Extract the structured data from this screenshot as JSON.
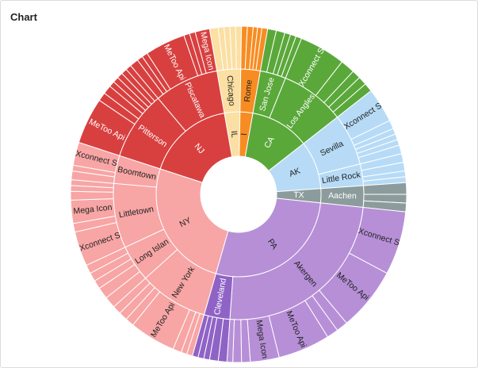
{
  "chart_data": {
    "type": "sunburst",
    "title": "Chart",
    "children": [
      {
        "name": "IL",
        "color": "#fbdfa3",
        "value": 11,
        "children": [
          {
            "name": "Chicago",
            "value": 11,
            "children": [
              {
                "name": null,
                "value": 3
              },
              {
                "name": null,
                "value": 2
              },
              {
                "name": null,
                "value": 2
              },
              {
                "name": null,
                "value": 2
              },
              {
                "name": null,
                "value": 2
              }
            ]
          }
        ]
      },
      {
        "name": "I",
        "color": "#f78d22",
        "value": 9,
        "children": [
          {
            "name": "Rome",
            "value": 9,
            "children": [
              {
                "name": null,
                "value": 2
              },
              {
                "name": null,
                "value": 2
              },
              {
                "name": null,
                "value": 1.5
              },
              {
                "name": null,
                "value": 1.5
              },
              {
                "name": null,
                "value": 2
              }
            ]
          }
        ]
      },
      {
        "name": "CA",
        "color": "#5aa83a",
        "value": 42,
        "children": [
          {
            "name": "San Jose",
            "value": 12,
            "children": [
              {
                "name": null,
                "value": 3
              },
              {
                "name": null,
                "value": 3
              },
              {
                "name": null,
                "value": 2
              },
              {
                "name": null,
                "value": 2
              },
              {
                "name": null,
                "value": 2
              }
            ]
          },
          {
            "name": "Los Angles",
            "value": 30,
            "children": [
              {
                "name": "Xconnect S",
                "value": 16
              },
              {
                "name": null,
                "value": 5
              },
              {
                "name": null,
                "value": 3
              },
              {
                "name": null,
                "value": 3
              },
              {
                "name": null,
                "value": 3
              }
            ]
          }
        ]
      },
      {
        "name": "AK",
        "color": "#b7dbf6",
        "value": 34,
        "children": [
          {
            "name": "Sevilla",
            "value": 24,
            "children": [
              {
                "name": "Xconnect S",
                "value": 12
              },
              {
                "name": null,
                "value": 3
              },
              {
                "name": null,
                "value": 2
              },
              {
                "name": null,
                "value": 2
              },
              {
                "name": null,
                "value": 2
              },
              {
                "name": null,
                "value": 3
              }
            ]
          },
          {
            "name": "Little Rock",
            "value": 10,
            "children": [
              {
                "name": null,
                "value": 3
              },
              {
                "name": null,
                "value": 3
              },
              {
                "name": null,
                "value": 2
              },
              {
                "name": null,
                "value": 2
              }
            ]
          }
        ]
      },
      {
        "name": "TX",
        "color": "#8c9c9c",
        "value": 10,
        "children": [
          {
            "name": "Aachen",
            "value": 10,
            "children": [
              {
                "name": null,
                "value": 4
              },
              {
                "name": null,
                "value": 3
              },
              {
                "name": null,
                "value": 3
              }
            ]
          }
        ]
      },
      {
        "name": "PA",
        "color": "#b78fd7",
        "value": 100,
        "children": [
          {
            "name": "Akergen",
            "value": 88,
            "children": [
              {
                "name": "Xconnect S",
                "value": 22
              },
              {
                "name": "MeToo Api",
                "value": 22
              },
              {
                "name": null,
                "value": 4
              },
              {
                "name": null,
                "value": 4
              },
              {
                "name": "MeToo Api",
                "value": 18
              },
              {
                "name": "Mega Icon",
                "value": 10
              },
              {
                "name": null,
                "value": 3
              },
              {
                "name": null,
                "value": 3
              },
              {
                "name": null,
                "value": 2
              }
            ]
          },
          {
            "name": "Cleveland",
            "color": "#8f63c6",
            "value": 12,
            "children": [
              {
                "name": null,
                "value": 3
              },
              {
                "name": null,
                "value": 3
              },
              {
                "name": null,
                "value": 2
              },
              {
                "name": null,
                "value": 2
              },
              {
                "name": null,
                "value": 2
              }
            ]
          }
        ]
      },
      {
        "name": "NY",
        "color": "#f8a5a5",
        "value": 92,
        "children": [
          {
            "name": "New York",
            "value": 32,
            "children": [
              {
                "name": null,
                "value": 2
              },
              {
                "name": null,
                "value": 2
              },
              {
                "name": null,
                "value": 3
              },
              {
                "name": "MeToo Api",
                "value": 16
              },
              {
                "name": null,
                "value": 3
              },
              {
                "name": null,
                "value": 3
              },
              {
                "name": null,
                "value": 3
              }
            ]
          },
          {
            "name": "Long Islan",
            "value": 17,
            "children": [
              {
                "name": null,
                "value": 4
              },
              {
                "name": null,
                "value": 4
              },
              {
                "name": null,
                "value": 3
              },
              {
                "name": null,
                "value": 3
              },
              {
                "name": null,
                "value": 3
              }
            ]
          },
          {
            "name": "Littletown",
            "value": 30,
            "children": [
              {
                "name": "Xconnect S",
                "value": 12
              },
              {
                "name": null,
                "value": 3
              },
              {
                "name": "Mega Icon",
                "value": 8
              },
              {
                "name": null,
                "value": 3
              },
              {
                "name": null,
                "value": 2
              },
              {
                "name": null,
                "value": 2
              }
            ]
          },
          {
            "name": "Boomtown",
            "value": 13,
            "children": [
              {
                "name": null,
                "value": 3
              },
              {
                "name": null,
                "value": 2
              },
              {
                "name": "Xconnect S",
                "value": 8
              }
            ]
          }
        ]
      },
      {
        "name": "NJ",
        "color": "#d8403f",
        "value": 62,
        "children": [
          {
            "name": "Pitterson",
            "value": 32,
            "children": [
              {
                "name": "MeToo Api",
                "value": 16
              },
              {
                "name": null,
                "value": 3
              },
              {
                "name": null,
                "value": 3
              },
              {
                "name": null,
                "value": 2
              },
              {
                "name": null,
                "value": 2
              },
              {
                "name": null,
                "value": 2
              },
              {
                "name": null,
                "value": 2
              },
              {
                "name": null,
                "value": 2
              }
            ]
          },
          {
            "name": "Piscatawa",
            "value": 30,
            "children": [
              {
                "name": null,
                "value": 3
              },
              {
                "name": null,
                "value": 2
              },
              {
                "name": null,
                "value": 2
              },
              {
                "name": "MeToo Api",
                "value": 14
              },
              {
                "name": null,
                "value": 2
              },
              {
                "name": null,
                "value": 2
              },
              {
                "name": "Mega Icon",
                "value": 5
              }
            ]
          }
        ]
      }
    ]
  }
}
